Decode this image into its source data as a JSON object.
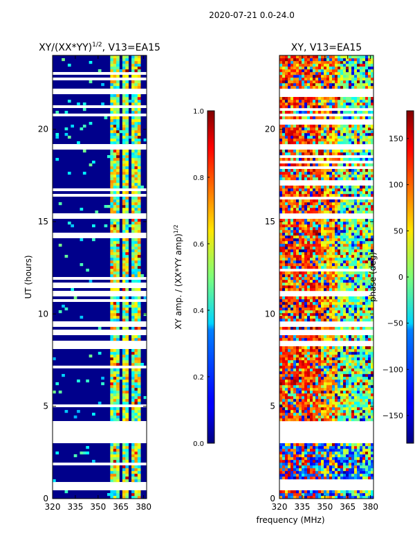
{
  "figure_title": "2020-07-21 0.0-24.0",
  "xlabel_shared": "frequency (MHz)",
  "chart_data": [
    {
      "type": "heatmap",
      "title_prefix": "XY/(XX*YY)",
      "title_exponent": "1/2",
      "title_suffix": ", V13=EA15",
      "ylabel": "UT (hours)",
      "xlabel": "",
      "xlim": [
        320,
        382
      ],
      "ylim": [
        0,
        24
      ],
      "xticks": [
        "320",
        "335",
        "350",
        "365",
        "380"
      ],
      "xtick_values": [
        320,
        335,
        350,
        365,
        380
      ],
      "yticks": [
        "0",
        "5",
        "10",
        "15",
        "20"
      ],
      "ytick_values": [
        0,
        5,
        10,
        15,
        20
      ],
      "colormap": "jet",
      "bright_bands_mhz": [
        [
          359,
          361
        ],
        [
          362,
          364
        ],
        [
          366,
          367
        ],
        [
          368,
          370
        ],
        [
          372,
          373
        ],
        [
          374,
          375
        ],
        [
          376,
          378
        ]
      ],
      "colorbar": {
        "label_main": "XY amp. / (XX*YY amp)",
        "label_exponent": "1/2",
        "range": [
          0.0,
          1.0
        ],
        "ticks": [
          "0.0",
          "0.2",
          "0.4",
          "0.6",
          "0.8",
          "1.0"
        ],
        "tick_values": [
          0.0,
          0.2,
          0.4,
          0.6,
          0.8,
          1.0
        ]
      }
    },
    {
      "type": "heatmap",
      "title": "XY, V13=EA15",
      "ylabel": "",
      "xlabel": "frequency (MHz)",
      "xlim": [
        320,
        382
      ],
      "ylim": [
        0,
        24
      ],
      "xticks": [
        "320",
        "335",
        "350",
        "365",
        "380"
      ],
      "xtick_values": [
        320,
        335,
        350,
        365,
        380
      ],
      "yticks": [
        "0",
        "5",
        "10",
        "15",
        "20"
      ],
      "ytick_values": [
        0,
        5,
        10,
        15,
        20
      ],
      "colormap": "jet",
      "colorbar": {
        "label": "phase (deg)",
        "range": [
          -180,
          180
        ],
        "ticks": [
          "150",
          "100",
          "50",
          "0",
          "−50",
          "−100",
          "−150"
        ],
        "tick_values": [
          150,
          100,
          50,
          0,
          -50,
          -100,
          -150
        ]
      }
    }
  ],
  "gaps_hours": [
    [
      0.55,
      0.8
    ],
    [
      3.15,
      3.9
    ],
    [
      4.0,
      4.08
    ],
    [
      8.3,
      8.45
    ],
    [
      8.9,
      9.05
    ],
    [
      9.35,
      9.55
    ],
    [
      11.0,
      11.12
    ],
    [
      15.2,
      15.35
    ],
    [
      18.95,
      19.15
    ],
    [
      22.0,
      22.08
    ]
  ]
}
